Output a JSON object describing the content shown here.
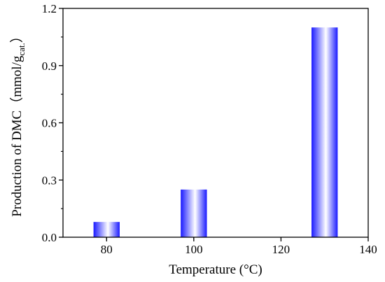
{
  "chart_data": {
    "type": "bar",
    "x": [
      80,
      100,
      130
    ],
    "values": [
      0.08,
      0.25,
      1.1
    ],
    "xlabel": "Temperature (°C)",
    "ylabel_main": "Production of DMC（mmol/g",
    "ylabel_sub": "cat.",
    "ylabel_close": "）",
    "xlim": [
      70,
      140
    ],
    "ylim": [
      0.0,
      1.2
    ],
    "xticks": [
      80,
      100,
      120,
      140
    ],
    "xtick_labels": [
      "80",
      "100",
      "120",
      "140"
    ],
    "yticks": [
      0.0,
      0.3,
      0.6,
      0.9,
      1.2
    ],
    "ytick_labels": [
      "0.0",
      "0.3",
      "0.6",
      "0.9",
      "1.2"
    ],
    "bar_width": 6,
    "grid": false,
    "legend": "none",
    "colors": {
      "bar_edge": "#1a1aff",
      "bar_center": "#ffffff",
      "axis": "#000000"
    }
  }
}
